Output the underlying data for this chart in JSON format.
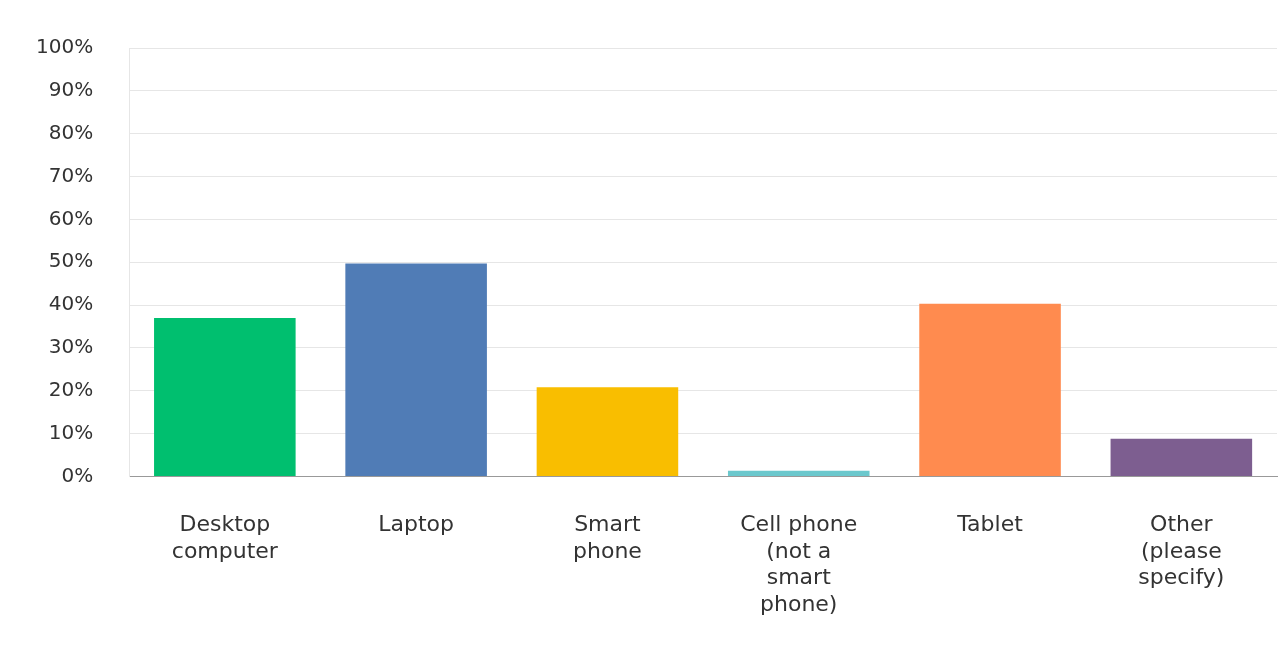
{
  "chart_data": {
    "type": "bar",
    "categories": [
      "Desktop computer",
      "Laptop",
      "Smart phone",
      "Cell phone (not a smart phone)",
      "Tablet",
      "Other (please specify)"
    ],
    "values": [
      37.0,
      49.7,
      20.8,
      1.3,
      40.3,
      8.8
    ],
    "colors": [
      "#00bf6f",
      "#507cb6",
      "#f9be00",
      "#6bc8cd",
      "#ff8b4f",
      "#7d5e90"
    ],
    "ylim": [
      0,
      100
    ],
    "yticks": [
      {
        "value": 0,
        "label": "0%"
      },
      {
        "value": 10,
        "label": "10%"
      },
      {
        "value": 20,
        "label": "20%"
      },
      {
        "value": 30,
        "label": "30%"
      },
      {
        "value": 40,
        "label": "40%"
      },
      {
        "value": 50,
        "label": "50%"
      },
      {
        "value": 60,
        "label": "60%"
      },
      {
        "value": 70,
        "label": "70%"
      },
      {
        "value": 80,
        "label": "80%"
      },
      {
        "value": 90,
        "label": "90%"
      },
      {
        "value": 100,
        "label": "100%"
      }
    ],
    "grid": "y",
    "legend": false
  }
}
